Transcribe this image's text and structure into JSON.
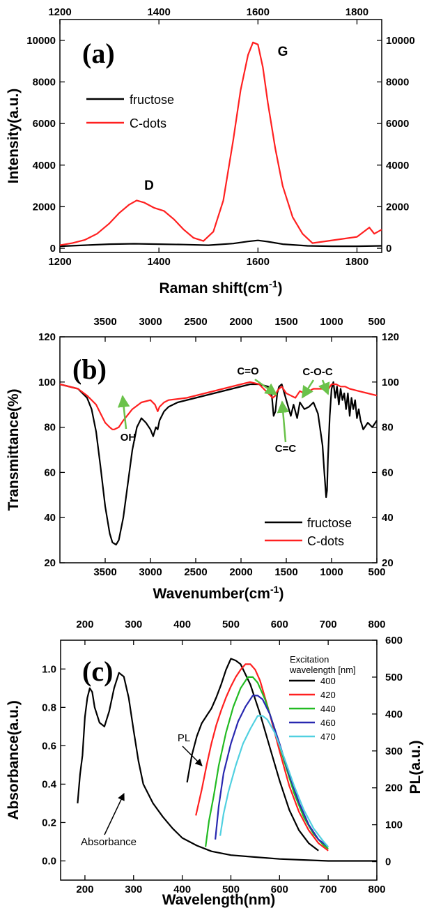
{
  "chart_data": [
    {
      "panel": "(a)",
      "type": "line",
      "xlabel": "Raman shift(cm",
      "xlabel_sup": "-1",
      "xlabel_end": ")",
      "ylabel": "Intensity(a.u.)",
      "xlim": [
        1200,
        1850
      ],
      "ylim": [
        -200,
        11000
      ],
      "x_ticks": [
        1200,
        1400,
        1600,
        1800
      ],
      "x_tick_labels": [
        "1200",
        "1400",
        "1600",
        "1800"
      ],
      "top_ticks": [
        1200,
        1400,
        1600,
        1800
      ],
      "top_tick_labels": [
        "1200",
        "1400",
        "1600",
        "1800"
      ],
      "y_ticks": [
        0,
        2000,
        4000,
        6000,
        8000,
        10000
      ],
      "y_tick_labels": [
        "0",
        "2000",
        "4000",
        "6000",
        "8000",
        "10000"
      ],
      "right_tick_labels": [
        "0",
        "2000",
        "4000",
        "6000",
        "8000",
        "10000"
      ],
      "legend_position": "top-left",
      "annotations": [
        {
          "text": "D",
          "x": 1360,
          "y": 3200
        },
        {
          "text": "G",
          "x": 1600,
          "y": 10600
        }
      ],
      "series": [
        {
          "name": "fructose",
          "color": "#000000",
          "x": [
            1200,
            1250,
            1300,
            1350,
            1400,
            1450,
            1500,
            1550,
            1580,
            1600,
            1620,
            1650,
            1700,
            1750,
            1800,
            1850
          ],
          "y": [
            100,
            150,
            200,
            220,
            200,
            180,
            150,
            230,
            330,
            380,
            320,
            200,
            120,
            100,
            100,
            120
          ]
        },
        {
          "name": "C-dots",
          "color": "#ff2020",
          "x": [
            1200,
            1225,
            1250,
            1275,
            1300,
            1320,
            1340,
            1355,
            1370,
            1390,
            1410,
            1430,
            1450,
            1470,
            1490,
            1510,
            1530,
            1550,
            1565,
            1580,
            1590,
            1600,
            1610,
            1620,
            1635,
            1650,
            1670,
            1690,
            1710,
            1740,
            1770,
            1800,
            1825,
            1835,
            1850
          ],
          "y": [
            150,
            250,
            400,
            700,
            1200,
            1700,
            2100,
            2300,
            2200,
            1950,
            1800,
            1400,
            900,
            500,
            350,
            800,
            2300,
            5200,
            7600,
            9300,
            9900,
            9800,
            8700,
            7000,
            4800,
            3000,
            1500,
            700,
            250,
            350,
            450,
            550,
            1000,
            700,
            900
          ]
        }
      ]
    },
    {
      "panel": "(b)",
      "type": "line",
      "xlabel": "Wavenumber(cm",
      "xlabel_sup": "-1",
      "xlabel_end": ")",
      "ylabel": "Transmittance(%)",
      "xlim": [
        4000,
        500
      ],
      "ylim": [
        20,
        120
      ],
      "x_ticks": [
        3500,
        3000,
        2500,
        2000,
        1500,
        1000,
        500
      ],
      "x_tick_labels": [
        "3500",
        "3000",
        "2500",
        "2000",
        "1500",
        "1000",
        "500"
      ],
      "top_ticks": [
        3500,
        3000,
        2500,
        2000,
        1500,
        1000,
        500
      ],
      "top_tick_labels": [
        "3500",
        "3000",
        "2500",
        "2000",
        "1500",
        "1000",
        "500"
      ],
      "y_ticks": [
        20,
        40,
        60,
        80,
        100,
        120
      ],
      "y_tick_labels": [
        "20",
        "40",
        "60",
        "80",
        "100",
        "120"
      ],
      "right_tick_labels": [
        "20",
        "40",
        "60",
        "80",
        "100",
        "120"
      ],
      "legend_position": "bottom-right",
      "annotations": [
        {
          "text": "OH",
          "x": 3430,
          "y": 64
        },
        {
          "text": "C=O",
          "x": 1950,
          "y": 108
        },
        {
          "text": "C=C",
          "x": 1550,
          "y": 77
        },
        {
          "text": "C-O-C",
          "x": 1200,
          "y": 108
        }
      ],
      "series": [
        {
          "name": "fructose",
          "color": "#000000",
          "x": [
            4000,
            3800,
            3700,
            3650,
            3600,
            3550,
            3500,
            3450,
            3420,
            3380,
            3350,
            3300,
            3250,
            3200,
            3150,
            3100,
            3050,
            3000,
            2970,
            2940,
            2920,
            2900,
            2850,
            2800,
            2700,
            2500,
            2300,
            2100,
            1900,
            1800,
            1700,
            1660,
            1640,
            1620,
            1600,
            1580,
            1550,
            1500,
            1450,
            1420,
            1400,
            1380,
            1350,
            1300,
            1250,
            1200,
            1150,
            1100,
            1080,
            1060,
            1050,
            1040,
            1020,
            1000,
            980,
            960,
            940,
            920,
            900,
            880,
            860,
            840,
            820,
            800,
            780,
            760,
            740,
            720,
            700,
            680,
            650,
            600,
            550,
            500
          ],
          "y": [
            99,
            97,
            93,
            88,
            78,
            62,
            45,
            33,
            29,
            28,
            30,
            40,
            55,
            70,
            80,
            84,
            82,
            79,
            76,
            80,
            79,
            83,
            87,
            89,
            91,
            93,
            95,
            97,
            99,
            99,
            98,
            94,
            85,
            87,
            95,
            98,
            99,
            92,
            85,
            90,
            87,
            84,
            91,
            88,
            89,
            91,
            86,
            72,
            60,
            49,
            52,
            66,
            85,
            97,
            100,
            93,
            98,
            90,
            97,
            92,
            95,
            88,
            95,
            85,
            93,
            88,
            92,
            84,
            88,
            83,
            79,
            82,
            80,
            83
          ]
        },
        {
          "name": "C-dots",
          "color": "#ff2020",
          "x": [
            4000,
            3800,
            3700,
            3600,
            3550,
            3500,
            3450,
            3420,
            3400,
            3350,
            3300,
            3200,
            3100,
            3000,
            2950,
            2920,
            2900,
            2850,
            2800,
            2600,
            2400,
            2200,
            2000,
            1900,
            1800,
            1750,
            1700,
            1650,
            1620,
            1600,
            1580,
            1550,
            1500,
            1450,
            1400,
            1350,
            1300,
            1250,
            1200,
            1150,
            1100,
            1050,
            1000,
            950,
            900,
            850,
            800,
            700,
            600,
            500
          ],
          "y": [
            99,
            97,
            94,
            90,
            86,
            82,
            80,
            79,
            79,
            80,
            83,
            88,
            91,
            92,
            90,
            87,
            89,
            91,
            92,
            93,
            95,
            97,
            99,
            100,
            99,
            97,
            95,
            93,
            94,
            96,
            97,
            98,
            95,
            94,
            93,
            96,
            95,
            96,
            97,
            97,
            97,
            96,
            99,
            99,
            98,
            98,
            97,
            96,
            95,
            94
          ]
        }
      ]
    },
    {
      "panel": "(c)",
      "type": "line",
      "xlabel": "Wavelength(nm)",
      "ylabel": "Absorbance(a.u.)",
      "y2label": "PL(a.u.)",
      "xlim": [
        150,
        800
      ],
      "ylim": [
        -0.1,
        1.15
      ],
      "y2lim": [
        -50,
        600
      ],
      "x_ticks": [
        200,
        300,
        400,
        500,
        600,
        700,
        800
      ],
      "x_tick_labels": [
        "200",
        "300",
        "400",
        "500",
        "600",
        "700",
        "800"
      ],
      "top_ticks": [
        200,
        300,
        400,
        500,
        600,
        700,
        800
      ],
      "top_tick_labels": [
        "200",
        "300",
        "400",
        "500",
        "600",
        "700",
        "800"
      ],
      "y_ticks": [
        0.0,
        0.2,
        0.4,
        0.6,
        0.8,
        1.0
      ],
      "y_tick_labels": [
        "0.0",
        "0.2",
        "0.4",
        "0.6",
        "0.8",
        "1.0"
      ],
      "y2_ticks": [
        0,
        100,
        200,
        300,
        400,
        500,
        600
      ],
      "y2_tick_labels": [
        "0",
        "100",
        "200",
        "300",
        "400",
        "500",
        "600"
      ],
      "legend_position": "top-right",
      "legend_title_1": "Excitation",
      "legend_title_2": "wavelength [nm]",
      "annotations": [
        {
          "text": "PL",
          "x": 330,
          "y": 0.78
        },
        {
          "text": "Absorbance",
          "x": 260,
          "y": 0.1
        }
      ],
      "series": [
        {
          "name": "Absorbance",
          "color": "#000000",
          "axis": "left",
          "x": [
            185,
            190,
            195,
            200,
            205,
            210,
            215,
            220,
            230,
            240,
            250,
            260,
            270,
            280,
            290,
            300,
            310,
            320,
            340,
            360,
            380,
            400,
            430,
            460,
            500,
            550,
            600,
            650,
            700,
            750,
            800
          ],
          "y": [
            0.3,
            0.45,
            0.55,
            0.75,
            0.85,
            0.9,
            0.88,
            0.8,
            0.72,
            0.7,
            0.78,
            0.9,
            0.98,
            0.96,
            0.85,
            0.68,
            0.52,
            0.4,
            0.3,
            0.23,
            0.17,
            0.12,
            0.08,
            0.05,
            0.03,
            0.02,
            0.01,
            0.005,
            0.0,
            0.0,
            0.0
          ]
        },
        {
          "name": "400",
          "color": "#000000",
          "axis": "right",
          "x": [
            410,
            420,
            430,
            440,
            450,
            460,
            470,
            480,
            490,
            500,
            510,
            520,
            540,
            560,
            580,
            600,
            620,
            640,
            660,
            680
          ],
          "y": [
            215,
            290,
            340,
            375,
            395,
            415,
            445,
            480,
            520,
            550,
            545,
            535,
            480,
            400,
            310,
            220,
            140,
            85,
            50,
            30
          ]
        },
        {
          "name": "420",
          "color": "#ff2020",
          "axis": "right",
          "x": [
            428,
            440,
            450,
            460,
            470,
            480,
            490,
            500,
            510,
            520,
            530,
            540,
            550,
            560,
            580,
            600,
            620,
            640,
            660,
            680,
            700
          ],
          "y": [
            125,
            195,
            260,
            320,
            370,
            410,
            445,
            475,
            500,
            520,
            535,
            535,
            520,
            490,
            400,
            300,
            205,
            135,
            85,
            50,
            30
          ]
        },
        {
          "name": "440",
          "color": "#22bb22",
          "axis": "right",
          "x": [
            448,
            455,
            465,
            475,
            490,
            505,
            520,
            535,
            545,
            555,
            570,
            590,
            610,
            630,
            650,
            670,
            690,
            700
          ],
          "y": [
            40,
            110,
            180,
            260,
            350,
            420,
            470,
            500,
            500,
            485,
            440,
            360,
            270,
            185,
            120,
            75,
            45,
            35
          ]
        },
        {
          "name": "460",
          "color": "#2828b0",
          "axis": "right",
          "x": [
            468,
            475,
            485,
            500,
            515,
            530,
            545,
            555,
            565,
            580,
            600,
            620,
            640,
            660,
            680,
            700
          ],
          "y": [
            60,
            150,
            240,
            320,
            380,
            420,
            450,
            450,
            440,
            400,
            320,
            235,
            160,
            100,
            60,
            40
          ]
        },
        {
          "name": "470",
          "color": "#50d0e0",
          "axis": "right",
          "x": [
            478,
            485,
            495,
            510,
            525,
            540,
            555,
            565,
            575,
            590,
            610,
            630,
            650,
            670,
            690,
            700
          ],
          "y": [
            70,
            130,
            190,
            260,
            320,
            360,
            395,
            395,
            385,
            350,
            280,
            205,
            140,
            90,
            55,
            40
          ]
        }
      ]
    }
  ]
}
